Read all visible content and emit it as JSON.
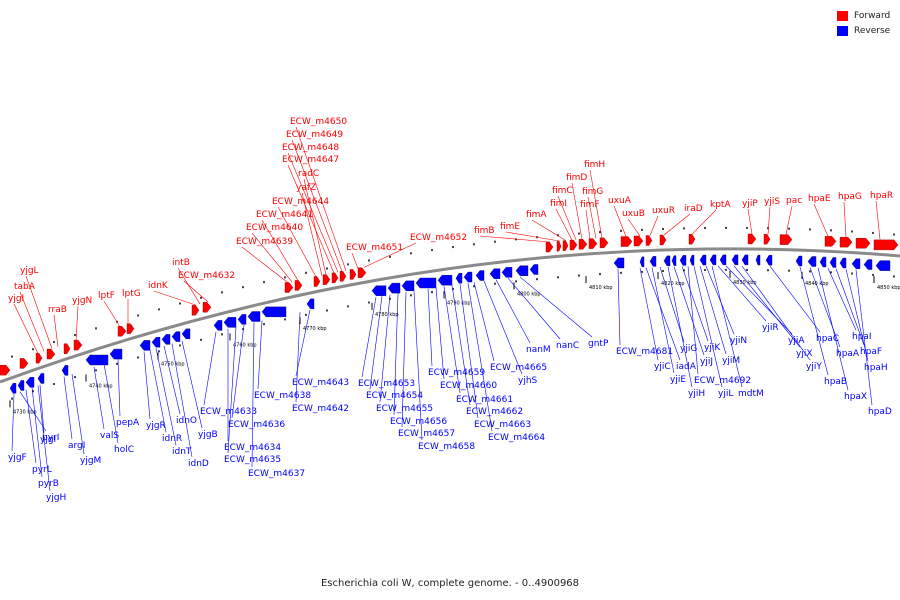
{
  "legend": {
    "forward_label": "Forward",
    "reverse_label": "Reverse",
    "forward_color": "#ff0000",
    "reverse_color": "#0000ff"
  },
  "caption": "Escherichia coli W, complete genome. - 0..4900968",
  "axis": {
    "tick_unit": "kbp",
    "ticks": [
      4730,
      4740,
      4750,
      4760,
      4770,
      4780,
      4790,
      4800,
      4810,
      4820,
      4830,
      4840,
      4850
    ]
  },
  "forward_genes": [
    "yjgI",
    "tabA",
    "yjgL",
    "rraB",
    "yjgN",
    "lptF",
    "lptG",
    "idnK",
    "intB",
    "ECW_m4632",
    "ECW_m4639",
    "ECW_m4640",
    "ECW_m4641",
    "ECW_m4644",
    "yafZ",
    "radC",
    "ECW_m4647",
    "ECW_m4648",
    "ECW_m4649",
    "ECW_m4650",
    "ECW_m4651",
    "ECW_m4652",
    "fimB",
    "fimE",
    "fimA",
    "fimI",
    "fimC",
    "fimD",
    "fimF",
    "fimG",
    "fimH",
    "uxuA",
    "uxuB",
    "uxuR",
    "iraD",
    "kptA",
    "yjiP",
    "yjiS",
    "pac",
    "hpaE",
    "hpaG",
    "hpaR"
  ],
  "reverse_genes": [
    "yjgF",
    "pyrI",
    "pyrL",
    "pyrB",
    "yjgH",
    "yjgI",
    "argI",
    "yjgM",
    "valS",
    "holC",
    "pepA",
    "yjgR",
    "idnR",
    "idnT",
    "idnO",
    "idnD",
    "yjgB",
    "ECW_m4633",
    "ECW_m4634",
    "ECW_m4635",
    "ECW_m4636",
    "ECW_m4637",
    "ECW_m4638",
    "ECW_m4642",
    "ECW_m4643",
    "ECW_m4653",
    "ECW_m4654",
    "ECW_m4655",
    "ECW_m4656",
    "ECW_m4657",
    "ECW_m4658",
    "ECW_m4659",
    "ECW_m4660",
    "ECW_m4661",
    "ECW_m4662",
    "ECW_m4663",
    "ECW_m4664",
    "ECW_m4665",
    "yjhS",
    "nanM",
    "nanC",
    "gntP",
    "ECW_m4681",
    "yjiC",
    "iadA",
    "yjiE",
    "yjiG",
    "yjiH",
    "yjiJ",
    "yjiK",
    "ECW_m4692",
    "yjiL",
    "yjiM",
    "yjiN",
    "mdtM",
    "yjiR",
    "yjiA",
    "yjiX",
    "yjiY",
    "hpaC",
    "hpaB",
    "hpaA",
    "hpaX",
    "hpaI",
    "hpaF",
    "hpaH",
    "hpaD"
  ]
}
